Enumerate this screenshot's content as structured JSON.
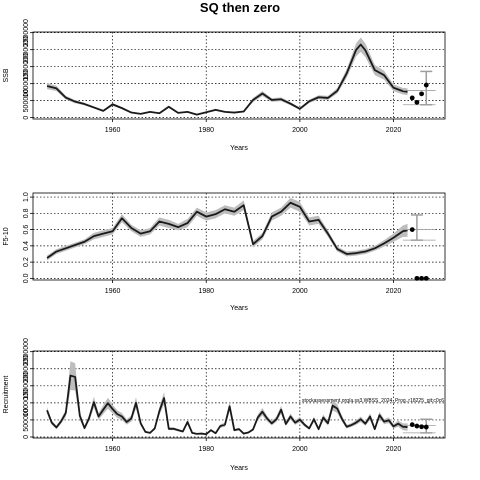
{
  "figure": {
    "title": "SQ then zero",
    "colors": {
      "band": "#bdbdbd",
      "line": "#1a1a1a",
      "projection": "#9e9e9e",
      "point": "#000000",
      "grid": "#000000"
    }
  },
  "chart_data": [
    {
      "type": "line",
      "title": "",
      "xlabel": "Years",
      "ylabel": "SSB",
      "xlim": [
        1943,
        2031
      ],
      "ylim": [
        -40000,
        2520000
      ],
      "xticks": [
        1960,
        1980,
        2000,
        2020
      ],
      "yticks": [
        0,
        500000,
        1000000,
        1500000,
        2000000,
        2500000
      ],
      "ytick_labels": [
        "0",
        "500000",
        "1000000",
        "1500000",
        "2000000",
        "2500000"
      ],
      "grid": true,
      "series": [
        {
          "x": [
            1946,
            1948,
            1950,
            1952,
            1954,
            1956,
            1958,
            1960,
            1962,
            1964,
            1966,
            1968,
            1970,
            1972,
            1974,
            1976,
            1978,
            1980,
            1982,
            1984,
            1986,
            1988,
            1990,
            1992,
            1994,
            1996,
            1998,
            2000,
            2002,
            2004,
            2006,
            2008,
            2010,
            2012,
            2013,
            2014,
            2016,
            2018,
            2020,
            2022,
            2023
          ],
          "y": [
            930000,
            860000,
            590000,
            470000,
            400000,
            300000,
            200000,
            390000,
            280000,
            150000,
            110000,
            170000,
            130000,
            320000,
            140000,
            170000,
            90000,
            160000,
            230000,
            170000,
            150000,
            180000,
            520000,
            710000,
            520000,
            540000,
            410000,
            260000,
            480000,
            600000,
            580000,
            790000,
            1300000,
            1990000,
            2150000,
            1980000,
            1400000,
            1250000,
            880000,
            780000,
            760000
          ],
          "band_half_width": [
            90000,
            80000,
            55000,
            45000,
            40000,
            30000,
            25000,
            40000,
            30000,
            20000,
            18000,
            20000,
            18000,
            35000,
            20000,
            20000,
            15000,
            20000,
            30000,
            20000,
            20000,
            25000,
            60000,
            75000,
            55000,
            55000,
            45000,
            30000,
            50000,
            60000,
            60000,
            80000,
            130000,
            190000,
            210000,
            200000,
            150000,
            130000,
            100000,
            95000,
            100000
          ]
        }
      ],
      "projection": {
        "x": 2027,
        "median": 800000,
        "low": 380000,
        "high": 1360000,
        "points": [
          [
            2024,
            580000
          ],
          [
            2025,
            450000
          ],
          [
            2026,
            700000
          ],
          [
            2027,
            960000
          ]
        ]
      }
    },
    {
      "type": "line",
      "title": "",
      "xlabel": "Years",
      "ylabel": "F5-10",
      "xlim": [
        1943,
        2031
      ],
      "ylim": [
        -0.02,
        1.05
      ],
      "xticks": [
        1960,
        1980,
        2000,
        2020
      ],
      "yticks": [
        0.0,
        0.2,
        0.4,
        0.6,
        0.8,
        1.0
      ],
      "ytick_labels": [
        "0.0",
        "0.2",
        "0.4",
        "0.6",
        "0.8",
        "1.0"
      ],
      "grid": true,
      "series": [
        {
          "x": [
            1946,
            1948,
            1950,
            1952,
            1954,
            1956,
            1958,
            1960,
            1962,
            1964,
            1966,
            1968,
            1970,
            1972,
            1974,
            1976,
            1978,
            1980,
            1982,
            1984,
            1986,
            1988,
            1990,
            1992,
            1994,
            1996,
            1998,
            2000,
            2002,
            2004,
            2006,
            2008,
            2010,
            2012,
            2014,
            2016,
            2018,
            2020,
            2022,
            2023
          ],
          "y": [
            0.25,
            0.33,
            0.37,
            0.41,
            0.45,
            0.52,
            0.55,
            0.58,
            0.74,
            0.62,
            0.55,
            0.58,
            0.7,
            0.67,
            0.63,
            0.68,
            0.82,
            0.76,
            0.79,
            0.85,
            0.82,
            0.9,
            0.42,
            0.52,
            0.76,
            0.82,
            0.93,
            0.88,
            0.7,
            0.72,
            0.55,
            0.36,
            0.3,
            0.31,
            0.33,
            0.37,
            0.43,
            0.5,
            0.58,
            0.59
          ],
          "band_half_width": [
            0.03,
            0.03,
            0.03,
            0.03,
            0.03,
            0.04,
            0.04,
            0.04,
            0.05,
            0.04,
            0.04,
            0.04,
            0.05,
            0.05,
            0.04,
            0.05,
            0.05,
            0.05,
            0.05,
            0.05,
            0.05,
            0.06,
            0.04,
            0.04,
            0.05,
            0.05,
            0.06,
            0.06,
            0.05,
            0.05,
            0.04,
            0.03,
            0.03,
            0.03,
            0.03,
            0.03,
            0.04,
            0.05,
            0.07,
            0.08
          ]
        }
      ],
      "projection": {
        "x": 2025,
        "median": 0.6,
        "low": 0.47,
        "high": 0.78,
        "points": [
          [
            2024,
            0.6
          ],
          [
            2025,
            0.0
          ],
          [
            2026,
            0.0
          ],
          [
            2027,
            0.0
          ]
        ]
      }
    },
    {
      "type": "line",
      "title": "",
      "xlabel": "Years",
      "ylabel": "Recruitment",
      "xlim": [
        1943,
        2031
      ],
      "ylim": [
        -30000,
        2520000
      ],
      "xticks": [
        1960,
        1980,
        2000,
        2020
      ],
      "yticks": [
        0,
        500000,
        1000000,
        1500000,
        2000000,
        2500000
      ],
      "ytick_labels": [
        "0",
        "500000",
        "1000000",
        "1500000",
        "2000000",
        "2500000"
      ],
      "grid": true,
      "annotation": "stockassessment.org/a.ss3.WBSS_2024_Prog..r18225_git:c0c6",
      "series": [
        {
          "x": [
            1946,
            1947,
            1948,
            1949,
            1950,
            1951,
            1952,
            1953,
            1954,
            1955,
            1956,
            1957,
            1958,
            1959,
            1960,
            1961,
            1962,
            1963,
            1964,
            1965,
            1966,
            1967,
            1968,
            1969,
            1970,
            1971,
            1972,
            1973,
            1974,
            1975,
            1976,
            1977,
            1978,
            1979,
            1980,
            1981,
            1982,
            1983,
            1984,
            1985,
            1986,
            1987,
            1988,
            1989,
            1990,
            1991,
            1992,
            1993,
            1994,
            1995,
            1996,
            1997,
            1998,
            1999,
            2000,
            2001,
            2002,
            2003,
            2004,
            2005,
            2006,
            2007,
            2008,
            2009,
            2010,
            2011,
            2012,
            2013,
            2014,
            2015,
            2016,
            2017,
            2018,
            2019,
            2020,
            2021,
            2022,
            2023
          ],
          "y": [
            780000,
            420000,
            280000,
            460000,
            700000,
            1800000,
            1760000,
            620000,
            260000,
            560000,
            1020000,
            600000,
            800000,
            990000,
            820000,
            670000,
            600000,
            440000,
            540000,
            1000000,
            400000,
            150000,
            120000,
            250000,
            760000,
            1140000,
            240000,
            240000,
            200000,
            160000,
            440000,
            120000,
            90000,
            100000,
            80000,
            200000,
            110000,
            320000,
            360000,
            900000,
            200000,
            230000,
            100000,
            130000,
            220000,
            570000,
            740000,
            540000,
            400000,
            520000,
            800000,
            380000,
            600000,
            420000,
            510000,
            360000,
            250000,
            520000,
            230000,
            570000,
            400000,
            920000,
            830000,
            530000,
            300000,
            350000,
            420000,
            520000,
            390000,
            600000,
            230000,
            640000,
            450000,
            490000,
            310000,
            390000,
            300000,
            290000
          ],
          "band_half_width": [
            90000,
            60000,
            50000,
            70000,
            110000,
            420000,
            400000,
            120000,
            50000,
            90000,
            160000,
            100000,
            130000,
            160000,
            130000,
            110000,
            100000,
            80000,
            90000,
            170000,
            70000,
            30000,
            25000,
            40000,
            120000,
            180000,
            40000,
            40000,
            35000,
            30000,
            70000,
            25000,
            20000,
            20000,
            15000,
            35000,
            20000,
            50000,
            60000,
            140000,
            35000,
            40000,
            20000,
            25000,
            40000,
            90000,
            110000,
            80000,
            60000,
            80000,
            120000,
            60000,
            90000,
            65000,
            80000,
            55000,
            40000,
            80000,
            40000,
            90000,
            65000,
            140000,
            130000,
            85000,
            50000,
            55000,
            65000,
            80000,
            60000,
            95000,
            40000,
            100000,
            75000,
            85000,
            65000,
            90000,
            100000,
            110000
          ]
        }
      ],
      "projection": {
        "x": 2027,
        "median": 340000,
        "low": 120000,
        "high": 520000,
        "points": [
          [
            2024,
            360000
          ],
          [
            2025,
            320000
          ],
          [
            2026,
            300000
          ],
          [
            2027,
            290000
          ]
        ]
      }
    }
  ]
}
